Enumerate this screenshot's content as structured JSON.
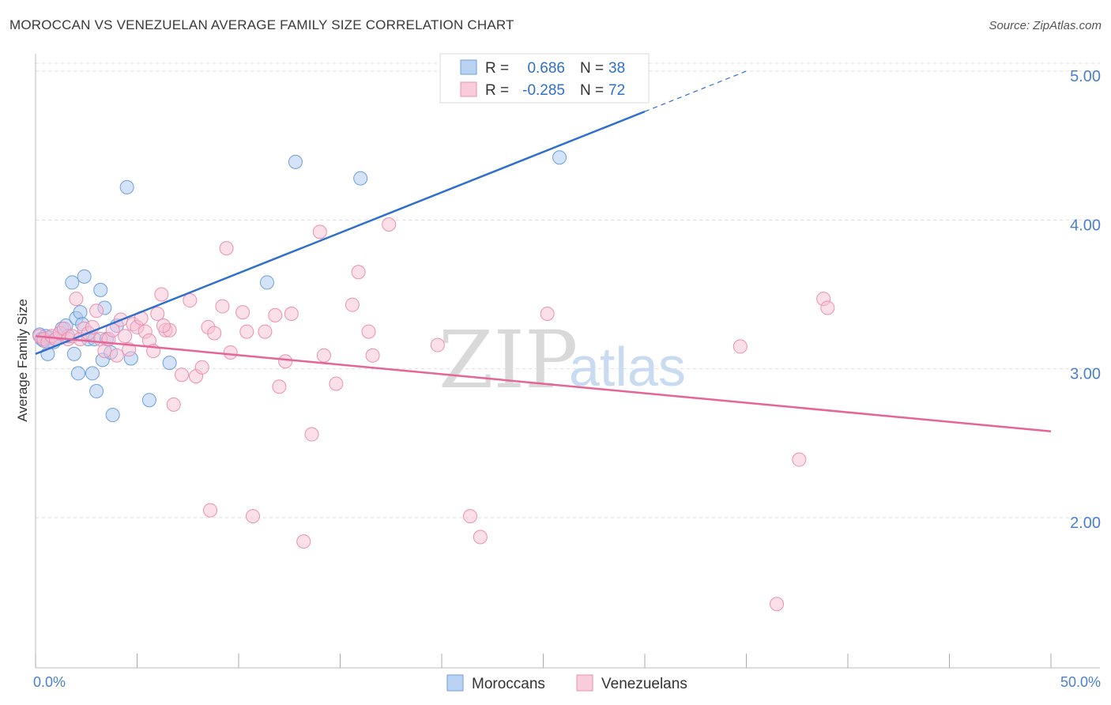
{
  "header": {
    "title": "MOROCCAN VS VENEZUELAN AVERAGE FAMILY SIZE CORRELATION CHART",
    "source": "Source: ZipAtlas.com"
  },
  "watermark": {
    "zip": "ZIP",
    "atlas": "atlas"
  },
  "legend": {
    "r_label": "R =",
    "n_label": "N =",
    "entries": [
      {
        "r": "0.686",
        "n": "38"
      },
      {
        "r": "-0.285",
        "n": "72"
      }
    ]
  },
  "bottom_legend": [
    "Moroccans",
    "Venezuelans"
  ],
  "colors": {
    "moroccan_fill": "#a9c8f0",
    "moroccan_stroke": "#6c9fe0",
    "moroccan_line": "#2f70cc",
    "venezuelan_fill": "#f7bfd3",
    "venezuelan_stroke": "#ec8fb0",
    "venezuelan_line": "#e46596",
    "grid": "#dddddd",
    "tick_text": "#4a7fd0"
  },
  "chart_data": {
    "type": "scatter",
    "xlabel": "",
    "ylabel": "Average Family Size",
    "xlim": [
      0,
      50
    ],
    "ylim": [
      1.0,
      5.2
    ],
    "x_tick_labels": [
      {
        "value": 0,
        "label": "0.0%"
      },
      {
        "value": 50,
        "label": "50.0%"
      }
    ],
    "y_ticks": [
      {
        "value": 2.0,
        "label": "2.00"
      },
      {
        "value": 3.0,
        "label": "3.00"
      },
      {
        "value": 4.0,
        "label": "4.00"
      },
      {
        "value": 5.0,
        "label": "5.00"
      }
    ],
    "grid": true,
    "legend_position": "top-center",
    "series": [
      {
        "name": "Moroccans",
        "trend": {
          "x_start": 0,
          "y_start": 3.1,
          "x_solid_end": 30,
          "x_dashed_end": 35
        },
        "points": [
          [
            0.2,
            3.23
          ],
          [
            0.3,
            3.2
          ],
          [
            0.5,
            3.22
          ],
          [
            0.6,
            3.1
          ],
          [
            0.7,
            3.21
          ],
          [
            0.9,
            3.18
          ],
          [
            1.0,
            3.2
          ],
          [
            1.2,
            3.24
          ],
          [
            1.3,
            3.27
          ],
          [
            1.5,
            3.29
          ],
          [
            1.6,
            3.22
          ],
          [
            1.8,
            3.58
          ],
          [
            1.9,
            3.1
          ],
          [
            2.0,
            3.34
          ],
          [
            2.1,
            2.97
          ],
          [
            2.2,
            3.38
          ],
          [
            2.3,
            3.3
          ],
          [
            2.4,
            3.62
          ],
          [
            2.6,
            3.2
          ],
          [
            2.8,
            2.97
          ],
          [
            2.9,
            3.2
          ],
          [
            3.0,
            2.85
          ],
          [
            3.2,
            3.53
          ],
          [
            3.3,
            3.06
          ],
          [
            3.4,
            3.41
          ],
          [
            3.5,
            3.2
          ],
          [
            3.7,
            3.11
          ],
          [
            3.8,
            2.69
          ],
          [
            4.0,
            3.29
          ],
          [
            4.5,
            4.22
          ],
          [
            4.7,
            3.07
          ],
          [
            5.6,
            2.79
          ],
          [
            6.6,
            3.04
          ],
          [
            11.4,
            3.58
          ],
          [
            12.8,
            4.39
          ],
          [
            16.0,
            4.28
          ],
          [
            25.8,
            4.42
          ],
          [
            0.4,
            3.19
          ]
        ]
      },
      {
        "name": "Venezuelans",
        "trend": {
          "x_start": 0,
          "y_start": 3.22,
          "x_end": 50,
          "y_end": 2.58
        },
        "points": [
          [
            0.2,
            3.22
          ],
          [
            0.4,
            3.2
          ],
          [
            0.6,
            3.18
          ],
          [
            0.8,
            3.22
          ],
          [
            1.0,
            3.2
          ],
          [
            1.2,
            3.24
          ],
          [
            1.4,
            3.27
          ],
          [
            1.6,
            3.2
          ],
          [
            1.8,
            3.22
          ],
          [
            2.0,
            3.47
          ],
          [
            2.2,
            3.2
          ],
          [
            2.4,
            3.27
          ],
          [
            2.6,
            3.24
          ],
          [
            2.8,
            3.28
          ],
          [
            3.0,
            3.39
          ],
          [
            3.2,
            3.2
          ],
          [
            3.4,
            3.12
          ],
          [
            3.6,
            3.2
          ],
          [
            3.8,
            3.26
          ],
          [
            4.0,
            3.09
          ],
          [
            4.2,
            3.33
          ],
          [
            4.4,
            3.22
          ],
          [
            4.6,
            3.13
          ],
          [
            4.8,
            3.3
          ],
          [
            5.0,
            3.28
          ],
          [
            5.2,
            3.34
          ],
          [
            5.4,
            3.25
          ],
          [
            5.6,
            3.19
          ],
          [
            5.8,
            3.12
          ],
          [
            6.0,
            3.37
          ],
          [
            6.2,
            3.5
          ],
          [
            6.4,
            3.26
          ],
          [
            6.6,
            3.26
          ],
          [
            6.8,
            2.76
          ],
          [
            7.2,
            2.96
          ],
          [
            7.6,
            3.46
          ],
          [
            7.9,
            2.95
          ],
          [
            8.2,
            3.01
          ],
          [
            8.5,
            3.28
          ],
          [
            8.8,
            3.24
          ],
          [
            9.2,
            3.42
          ],
          [
            9.4,
            3.81
          ],
          [
            9.6,
            3.11
          ],
          [
            10.2,
            3.38
          ],
          [
            10.4,
            3.25
          ],
          [
            11.3,
            3.25
          ],
          [
            11.8,
            3.36
          ],
          [
            12.0,
            2.88
          ],
          [
            12.3,
            3.05
          ],
          [
            12.6,
            3.37
          ],
          [
            13.2,
            1.84
          ],
          [
            13.6,
            2.56
          ],
          [
            14.0,
            3.92
          ],
          [
            14.2,
            3.09
          ],
          [
            14.8,
            2.9
          ],
          [
            15.6,
            3.43
          ],
          [
            15.9,
            3.65
          ],
          [
            16.4,
            3.25
          ],
          [
            16.6,
            3.09
          ],
          [
            17.4,
            3.97
          ],
          [
            19.8,
            3.16
          ],
          [
            21.4,
            2.01
          ],
          [
            21.9,
            1.87
          ],
          [
            25.2,
            3.37
          ],
          [
            34.7,
            3.15
          ],
          [
            37.6,
            2.39
          ],
          [
            38.8,
            3.47
          ],
          [
            39.0,
            3.41
          ],
          [
            8.6,
            2.05
          ],
          [
            10.7,
            2.01
          ],
          [
            36.5,
            1.42
          ],
          [
            6.3,
            3.29
          ]
        ]
      }
    ]
  }
}
